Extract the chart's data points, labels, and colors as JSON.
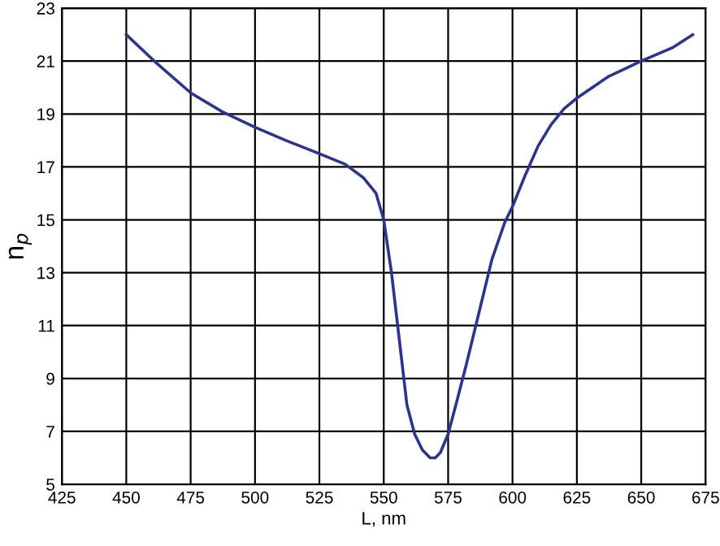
{
  "chart_data": {
    "type": "line",
    "xlabel": "L, nm",
    "ylabel": "n$_{p}$",
    "series": [
      {
        "color": "#2b3590",
        "x": [
          450,
          462,
          475,
          487,
          500,
          512,
          525,
          535,
          542,
          547,
          550,
          553,
          556,
          559,
          562,
          565,
          568,
          570,
          572,
          575,
          578,
          582,
          587,
          592,
          597,
          600,
          605,
          610,
          615,
          620,
          625,
          637,
          650,
          662,
          670
        ],
        "values": [
          22,
          20.9,
          19.8,
          19.1,
          18.5,
          18.0,
          17.5,
          17.1,
          16.6,
          16.0,
          15.0,
          13.0,
          10.5,
          8.0,
          6.9,
          6.3,
          6.0,
          6.0,
          6.2,
          6.9,
          8.0,
          9.5,
          11.5,
          13.5,
          14.9,
          15.5,
          16.7,
          17.8,
          18.6,
          19.2,
          19.6,
          20.4,
          21.0,
          21.5,
          22.0
        ]
      }
    ],
    "xlim": [
      425,
      675
    ],
    "xticks": [
      425,
      450,
      475,
      500,
      525,
      550,
      575,
      600,
      625,
      650,
      675
    ],
    "ylim": [
      5,
      23
    ],
    "yticks": [
      5,
      7,
      9,
      11,
      13,
      15,
      17,
      19,
      21,
      23
    ],
    "grid": true,
    "line_style": "solid",
    "marker": "none"
  }
}
